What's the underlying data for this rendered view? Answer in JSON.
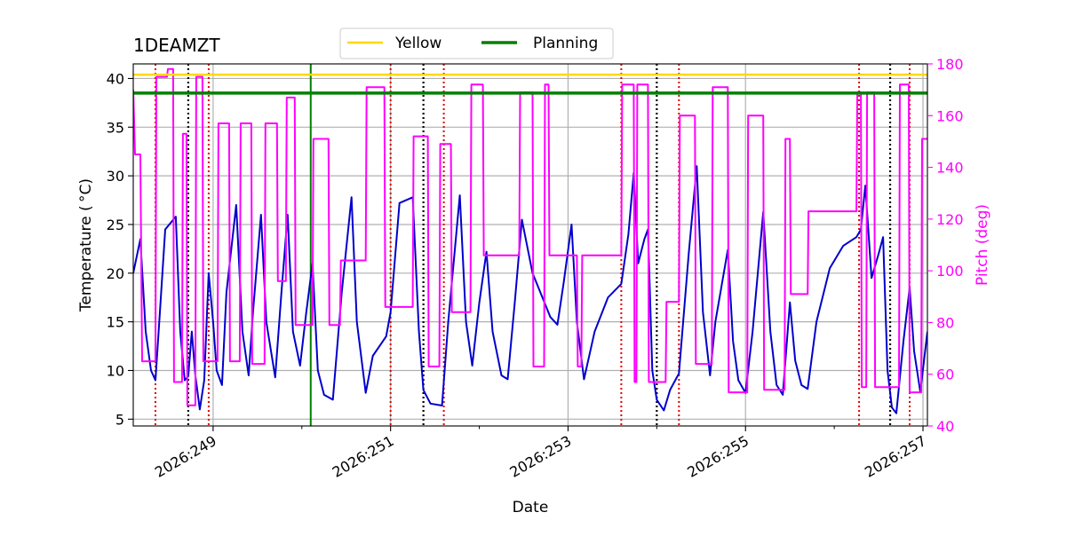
{
  "chart_data": {
    "type": "line",
    "title": "1DEAMZT",
    "xlabel": "Date",
    "ylabel_left": "Temperature ( °C)",
    "ylabel_right": "Pitch (deg)",
    "xlim": [
      248.1,
      257.05
    ],
    "ylim_left": [
      4.3,
      41.5
    ],
    "ylim_right": [
      40,
      180
    ],
    "x_ticks": [
      {
        "value": 249,
        "label": "2026:249"
      },
      {
        "value": 251,
        "label": "2026:251"
      },
      {
        "value": 253,
        "label": "2026:253"
      },
      {
        "value": 255,
        "label": "2026:255"
      },
      {
        "value": 257,
        "label": "2026:257"
      }
    ],
    "x_minor_ticks": [
      250,
      252,
      254,
      256
    ],
    "y_ticks_left": [
      5,
      10,
      15,
      20,
      25,
      30,
      35,
      40
    ],
    "y_ticks_right": [
      40,
      60,
      80,
      100,
      120,
      140,
      160,
      180
    ],
    "grid": true,
    "legend": {
      "position": "top-center",
      "entries": [
        {
          "label": "Yellow",
          "color": "#ffd700"
        },
        {
          "label": "Planning",
          "color": "#008000"
        }
      ]
    },
    "thresholds": [
      {
        "name": "Yellow",
        "value": 40.4,
        "color": "#ffd700"
      },
      {
        "name": "Planning",
        "value": 38.5,
        "color": "#008000"
      }
    ],
    "now_line": {
      "x": 250.1,
      "color": "#008000"
    },
    "red_dotted_lines": [
      248.35,
      248.95,
      251.0,
      251.6,
      253.6,
      254.25,
      256.28,
      256.85
    ],
    "black_dotted_lines": [
      248.72,
      251.37,
      254.0,
      256.63
    ],
    "series": [
      {
        "name": "Temperature",
        "axis": "left",
        "color": "#0000cc",
        "points": [
          [
            248.1,
            20
          ],
          [
            248.18,
            23.5
          ],
          [
            248.24,
            14
          ],
          [
            248.3,
            10
          ],
          [
            248.35,
            9
          ],
          [
            248.4,
            16
          ],
          [
            248.46,
            24.5
          ],
          [
            248.58,
            25.8
          ],
          [
            248.63,
            14
          ],
          [
            248.68,
            9
          ],
          [
            248.72,
            9.4
          ],
          [
            248.76,
            14
          ],
          [
            248.8,
            9.5
          ],
          [
            248.85,
            6
          ],
          [
            248.9,
            9
          ],
          [
            248.95,
            20
          ],
          [
            249.0,
            15
          ],
          [
            249.04,
            10
          ],
          [
            249.1,
            8.5
          ],
          [
            249.15,
            18
          ],
          [
            249.26,
            27
          ],
          [
            249.33,
            14
          ],
          [
            249.4,
            9.5
          ],
          [
            249.45,
            16
          ],
          [
            249.54,
            26
          ],
          [
            249.6,
            15
          ],
          [
            249.7,
            9.3
          ],
          [
            249.77,
            18
          ],
          [
            249.84,
            26
          ],
          [
            249.9,
            14
          ],
          [
            249.98,
            10.5
          ],
          [
            250.05,
            16
          ],
          [
            250.12,
            21
          ],
          [
            250.18,
            10
          ],
          [
            250.25,
            7.5
          ],
          [
            250.35,
            7
          ],
          [
            250.45,
            18
          ],
          [
            250.56,
            27.8
          ],
          [
            250.62,
            15
          ],
          [
            250.72,
            7.7
          ],
          [
            250.8,
            11.5
          ],
          [
            250.95,
            13.5
          ],
          [
            251.0,
            16
          ],
          [
            251.1,
            27.2
          ],
          [
            251.25,
            27.8
          ],
          [
            251.32,
            14
          ],
          [
            251.37,
            8
          ],
          [
            251.45,
            6.6
          ],
          [
            251.58,
            6.4
          ],
          [
            251.65,
            15
          ],
          [
            251.78,
            28
          ],
          [
            251.85,
            15
          ],
          [
            251.92,
            10.5
          ],
          [
            252.0,
            17
          ],
          [
            252.08,
            22.2
          ],
          [
            252.15,
            14
          ],
          [
            252.25,
            9.5
          ],
          [
            252.32,
            9.1
          ],
          [
            252.4,
            17
          ],
          [
            252.48,
            25.5
          ],
          [
            252.6,
            20
          ],
          [
            252.8,
            15.5
          ],
          [
            252.88,
            14.7
          ],
          [
            252.95,
            19
          ],
          [
            253.04,
            25
          ],
          [
            253.1,
            15
          ],
          [
            253.18,
            9.1
          ],
          [
            253.3,
            14
          ],
          [
            253.45,
            17.5
          ],
          [
            253.6,
            18.9
          ],
          [
            253.68,
            24
          ],
          [
            253.74,
            30.3
          ],
          [
            253.79,
            21
          ],
          [
            253.86,
            23.5
          ],
          [
            253.9,
            24.5
          ],
          [
            253.95,
            10
          ],
          [
            254.0,
            7
          ],
          [
            254.08,
            5.9
          ],
          [
            254.15,
            8
          ],
          [
            254.25,
            9.7
          ],
          [
            254.36,
            22
          ],
          [
            254.45,
            31
          ],
          [
            254.52,
            16
          ],
          [
            254.6,
            9.5
          ],
          [
            254.66,
            15
          ],
          [
            254.8,
            22.4
          ],
          [
            254.86,
            13
          ],
          [
            254.92,
            9
          ],
          [
            255.0,
            7.7
          ],
          [
            255.08,
            14
          ],
          [
            255.2,
            26.3
          ],
          [
            255.28,
            14
          ],
          [
            255.35,
            8.5
          ],
          [
            255.42,
            7.5
          ],
          [
            255.5,
            17
          ],
          [
            255.56,
            11
          ],
          [
            255.63,
            8.5
          ],
          [
            255.7,
            8.1
          ],
          [
            255.8,
            15
          ],
          [
            255.95,
            20.5
          ],
          [
            256.1,
            22.8
          ],
          [
            256.25,
            23.7
          ],
          [
            256.3,
            24.5
          ],
          [
            256.35,
            29
          ],
          [
            256.42,
            19.5
          ],
          [
            256.5,
            22
          ],
          [
            256.55,
            23.7
          ],
          [
            256.6,
            10
          ],
          [
            256.65,
            6.2
          ],
          [
            256.7,
            5.6
          ],
          [
            256.78,
            13
          ],
          [
            256.85,
            18.5
          ],
          [
            256.9,
            12
          ],
          [
            256.97,
            7.8
          ],
          [
            257.05,
            14
          ]
        ]
      },
      {
        "name": "Pitch",
        "axis": "right",
        "color": "#ff00ff",
        "points": [
          [
            248.1,
            170
          ],
          [
            248.12,
            145
          ],
          [
            248.18,
            145
          ],
          [
            248.2,
            65
          ],
          [
            248.35,
            65
          ],
          [
            248.36,
            175
          ],
          [
            248.48,
            175
          ],
          [
            248.49,
            178
          ],
          [
            248.55,
            178
          ],
          [
            248.56,
            57
          ],
          [
            248.65,
            57
          ],
          [
            248.66,
            153
          ],
          [
            248.7,
            153
          ],
          [
            248.71,
            48
          ],
          [
            248.8,
            48
          ],
          [
            248.81,
            175
          ],
          [
            248.88,
            175
          ],
          [
            248.89,
            65
          ],
          [
            249.05,
            65
          ],
          [
            249.06,
            157
          ],
          [
            249.18,
            157
          ],
          [
            249.19,
            65
          ],
          [
            249.3,
            65
          ],
          [
            249.31,
            157
          ],
          [
            249.43,
            157
          ],
          [
            249.44,
            64
          ],
          [
            249.58,
            64
          ],
          [
            249.59,
            157
          ],
          [
            249.72,
            157
          ],
          [
            249.73,
            96
          ],
          [
            249.82,
            96
          ],
          [
            249.83,
            167
          ],
          [
            249.92,
            167
          ],
          [
            249.93,
            79
          ],
          [
            250.12,
            79
          ],
          [
            250.13,
            151
          ],
          [
            250.3,
            151
          ],
          [
            250.31,
            79
          ],
          [
            250.43,
            79
          ],
          [
            250.44,
            104
          ],
          [
            250.72,
            104
          ],
          [
            250.73,
            171
          ],
          [
            250.93,
            171
          ],
          [
            250.94,
            86
          ],
          [
            251.25,
            86
          ],
          [
            251.26,
            152
          ],
          [
            251.42,
            152
          ],
          [
            251.43,
            63
          ],
          [
            251.55,
            63
          ],
          [
            251.56,
            149
          ],
          [
            251.68,
            149
          ],
          [
            251.69,
            84
          ],
          [
            251.9,
            84
          ],
          [
            251.91,
            172
          ],
          [
            252.04,
            172
          ],
          [
            252.05,
            106
          ],
          [
            252.45,
            106
          ],
          [
            252.46,
            169
          ],
          [
            252.6,
            169
          ],
          [
            252.61,
            63
          ],
          [
            252.73,
            63
          ],
          [
            252.74,
            172
          ],
          [
            252.78,
            172
          ],
          [
            252.79,
            106
          ],
          [
            253.1,
            106
          ],
          [
            253.11,
            63
          ],
          [
            253.15,
            63
          ],
          [
            253.16,
            106
          ],
          [
            253.6,
            106
          ],
          [
            253.61,
            172
          ],
          [
            253.74,
            172
          ],
          [
            253.75,
            57
          ],
          [
            253.77,
            57
          ],
          [
            253.78,
            172
          ],
          [
            253.9,
            172
          ],
          [
            253.91,
            57
          ],
          [
            254.1,
            57
          ],
          [
            254.11,
            88
          ],
          [
            254.25,
            88
          ],
          [
            254.26,
            160
          ],
          [
            254.43,
            160
          ],
          [
            254.44,
            64
          ],
          [
            254.62,
            64
          ],
          [
            254.63,
            171
          ],
          [
            254.8,
            171
          ],
          [
            254.81,
            53
          ],
          [
            255.02,
            53
          ],
          [
            255.03,
            160
          ],
          [
            255.2,
            160
          ],
          [
            255.21,
            54
          ],
          [
            255.44,
            54
          ],
          [
            255.45,
            151
          ],
          [
            255.5,
            151
          ],
          [
            255.51,
            91
          ],
          [
            255.7,
            91
          ],
          [
            255.71,
            123
          ],
          [
            256.25,
            123
          ],
          [
            256.26,
            169
          ],
          [
            256.3,
            169
          ],
          [
            256.31,
            55
          ],
          [
            256.36,
            55
          ],
          [
            256.37,
            169
          ],
          [
            256.45,
            169
          ],
          [
            256.46,
            55
          ],
          [
            256.73,
            55
          ],
          [
            256.74,
            172
          ],
          [
            256.84,
            172
          ],
          [
            256.85,
            53
          ],
          [
            256.98,
            53
          ],
          [
            256.99,
            151
          ],
          [
            257.05,
            151
          ]
        ]
      }
    ]
  }
}
